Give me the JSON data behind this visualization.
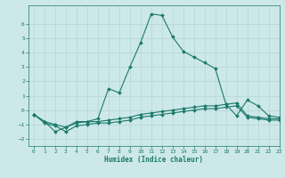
{
  "title": "",
  "xlabel": "Humidex (Indice chaleur)",
  "ylabel": "",
  "background_color": "#cde8e8",
  "line_color": "#1a7a6a",
  "grid_color": "#b8d8d8",
  "xlim": [
    -0.5,
    23
  ],
  "ylim": [
    -2.5,
    7.3
  ],
  "xticks": [
    0,
    1,
    2,
    3,
    4,
    5,
    6,
    7,
    8,
    9,
    10,
    11,
    12,
    13,
    14,
    15,
    16,
    17,
    18,
    19,
    20,
    21,
    22,
    23
  ],
  "yticks": [
    -2,
    -1,
    0,
    1,
    2,
    3,
    4,
    5,
    6
  ],
  "series1_x": [
    0,
    1,
    2,
    3,
    4,
    5,
    6,
    7,
    8,
    9,
    10,
    11,
    12,
    13,
    14,
    15,
    16,
    17,
    18,
    19,
    20,
    21,
    22,
    23
  ],
  "series1_y": [
    -0.3,
    -0.8,
    -1.5,
    -1.2,
    -0.8,
    -0.8,
    -0.6,
    1.5,
    1.2,
    3.0,
    4.7,
    6.7,
    6.6,
    5.1,
    4.1,
    3.7,
    3.3,
    2.9,
    0.4,
    -0.4,
    0.7,
    0.3,
    -0.4,
    -0.5
  ],
  "series2_x": [
    0,
    1,
    2,
    3,
    4,
    5,
    6,
    7,
    8,
    9,
    10,
    11,
    12,
    13,
    14,
    15,
    16,
    17,
    18,
    19,
    20,
    21,
    22,
    23
  ],
  "series2_y": [
    -0.3,
    -0.8,
    -1.0,
    -1.2,
    -0.9,
    -0.8,
    -0.8,
    -0.7,
    -0.6,
    -0.5,
    -0.3,
    -0.2,
    -0.1,
    0.0,
    0.1,
    0.2,
    0.3,
    0.3,
    0.4,
    0.5,
    -0.4,
    -0.5,
    -0.6,
    -0.6
  ],
  "series3_x": [
    0,
    1,
    2,
    3,
    4,
    5,
    6,
    7,
    8,
    9,
    10,
    11,
    12,
    13,
    14,
    15,
    16,
    17,
    18,
    19,
    20,
    21,
    22,
    23
  ],
  "series3_y": [
    -0.3,
    -0.9,
    -1.1,
    -1.5,
    -1.1,
    -1.0,
    -0.9,
    -0.9,
    -0.8,
    -0.7,
    -0.5,
    -0.4,
    -0.3,
    -0.2,
    -0.1,
    0.0,
    0.1,
    0.1,
    0.2,
    0.3,
    -0.5,
    -0.6,
    -0.7,
    -0.7
  ]
}
